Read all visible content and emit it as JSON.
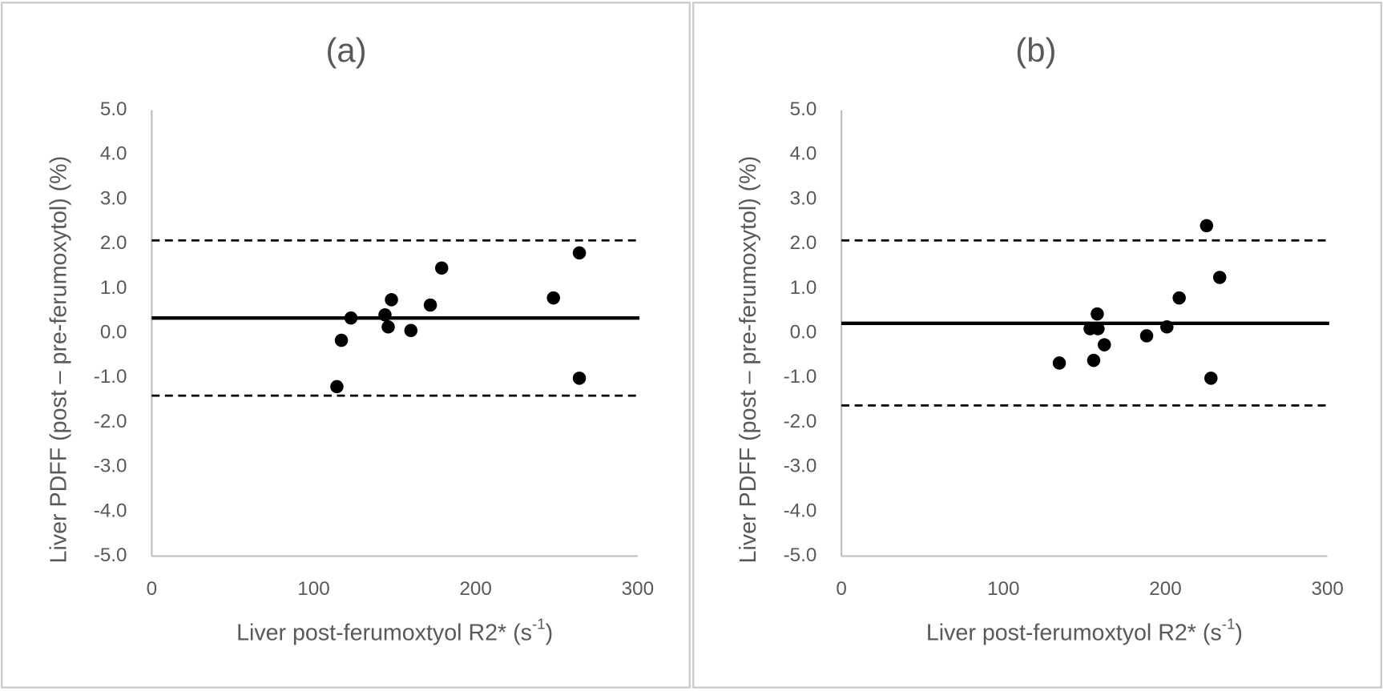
{
  "chart_data": [
    {
      "type": "scatter",
      "title": "(a)",
      "xlabel": {
        "text": "Liver post-ferumoxtyol R2* (s",
        "superscript": "-1",
        "suffix": ")"
      },
      "ylabel": "Liver PDFF (post – pre-ferumoxytol) (%)",
      "x": [
        114.3,
        117.1,
        123,
        144,
        146,
        148,
        160,
        172,
        179,
        248,
        264,
        264
      ],
      "values": [
        -1.2,
        -0.16,
        0.34,
        0.41,
        0.14,
        0.75,
        0.06,
        0.63,
        1.46,
        0.79,
        1.8,
        -1.01
      ],
      "color": "#000000",
      "reference_lines": [
        {
          "value": 0.34,
          "style": "solid"
        },
        {
          "value": 2.08,
          "style": "dashed"
        },
        {
          "value": -1.4,
          "style": "dashed"
        }
      ],
      "xlim": [
        0,
        300
      ],
      "xticks": [
        0,
        100,
        200,
        300
      ],
      "ylim": [
        -5,
        5
      ],
      "yticks": [
        {
          "value": 5,
          "label": "5.0"
        },
        {
          "value": 4,
          "label": "4.0"
        },
        {
          "value": 3,
          "label": "3.0"
        },
        {
          "value": 2,
          "label": "2.0"
        },
        {
          "value": 1,
          "label": "1.0"
        },
        {
          "value": 0,
          "label": "0.0"
        },
        {
          "value": -1,
          "label": "-1.0"
        },
        {
          "value": -2,
          "label": "-2.0"
        },
        {
          "value": -3,
          "label": "-3.0"
        },
        {
          "value": -4,
          "label": "-4.0"
        },
        {
          "value": -5,
          "label": "-5.0"
        }
      ],
      "grid": false
    },
    {
      "type": "scatter",
      "title": "(b)",
      "xlabel": {
        "text": "Liver post-ferumoxtyol R2* (s",
        "superscript": "-1",
        "suffix": ")"
      },
      "ylabel": "Liver PDFF (post – pre-ferumoxytol) (%)",
      "x": [
        134.5,
        153.5,
        155.7,
        157.9,
        158.4,
        162.3,
        188.4,
        200.9,
        208.5,
        225.4,
        228.1,
        233.5
      ],
      "values": [
        -0.67,
        0.1,
        -0.61,
        0.43,
        0.1,
        -0.26,
        -0.06,
        0.14,
        0.79,
        2.41,
        -1.01,
        1.25
      ],
      "color": "#000000",
      "reference_lines": [
        {
          "value": 0.22,
          "style": "solid"
        },
        {
          "value": 2.08,
          "style": "dashed"
        },
        {
          "value": -1.62,
          "style": "dashed"
        }
      ],
      "xlim": [
        0,
        300
      ],
      "xticks": [
        0,
        100,
        200,
        300
      ],
      "ylim": [
        -5,
        5
      ],
      "yticks": [
        {
          "value": 5,
          "label": "5.0"
        },
        {
          "value": 4,
          "label": "4.0"
        },
        {
          "value": 3,
          "label": "3.0"
        },
        {
          "value": 2,
          "label": "2.0"
        },
        {
          "value": 1,
          "label": "1.0"
        },
        {
          "value": 0,
          "label": "0.0"
        },
        {
          "value": -1,
          "label": "-1.0"
        },
        {
          "value": -2,
          "label": "-2.0"
        },
        {
          "value": -3,
          "label": "-3.0"
        },
        {
          "value": -4,
          "label": "-4.0"
        },
        {
          "value": -5,
          "label": "-5.0"
        }
      ],
      "grid": false
    }
  ]
}
